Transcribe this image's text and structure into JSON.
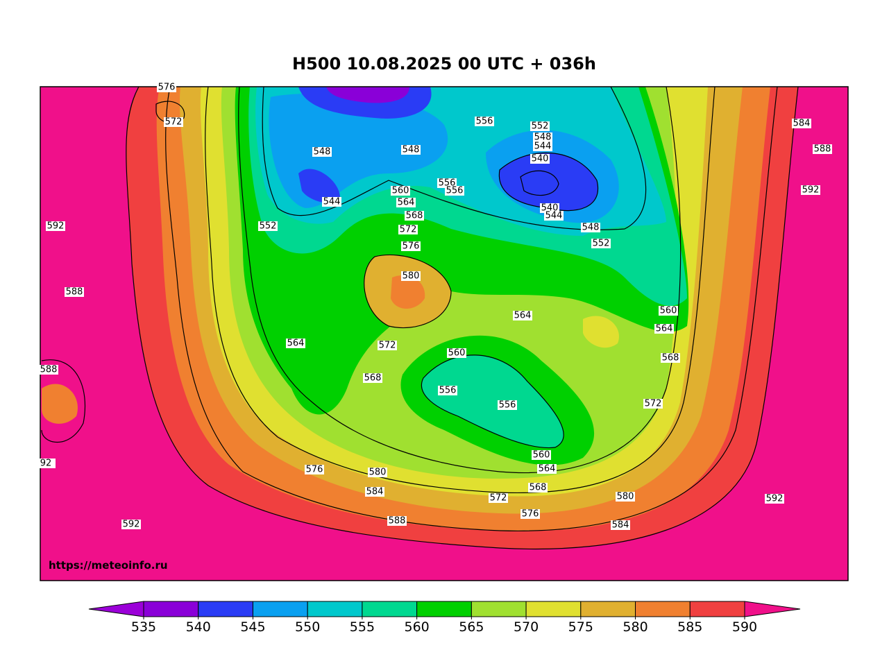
{
  "title": "H500  10.08.2025 00 UTC + 036h",
  "watermark": "https://meteoinfo.ru",
  "contour_labels": [
    "576",
    "572",
    "556",
    "552",
    "548",
    "544",
    "540",
    "540",
    "544",
    "584",
    "588",
    "592",
    "548",
    "548",
    "544",
    "560",
    "564",
    "568",
    "572",
    "576",
    "580",
    "552",
    "556",
    "556",
    "548",
    "552",
    "592",
    "588",
    "560",
    "564",
    "568",
    "564",
    "564",
    "572",
    "560",
    "556",
    "556",
    "568",
    "560",
    "564",
    "568",
    "572",
    "576",
    "580",
    "584",
    "588",
    "584",
    "580",
    "576",
    "592",
    "592",
    "92",
    "588",
    "572"
  ],
  "colorbar": {
    "ticks": [
      535,
      540,
      545,
      550,
      555,
      560,
      565,
      570,
      575,
      580,
      585,
      590
    ],
    "colors": [
      "#8a00d8",
      "#2a3cf5",
      "#0aa0f0",
      "#00c8cc",
      "#00d890",
      "#00d000",
      "#a0e030",
      "#e0e030",
      "#e0b030",
      "#f08030",
      "#f04040"
    ],
    "under_color": "#9b00d8",
    "over_color": "#f0108a"
  }
}
